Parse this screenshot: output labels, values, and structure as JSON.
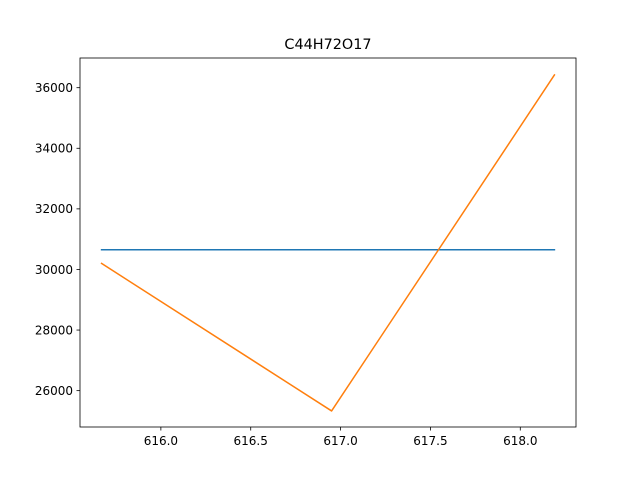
{
  "chart_data": {
    "type": "line",
    "title": "C44H72O17",
    "xlabel": "",
    "ylabel": "",
    "xlim": [
      615.55,
      618.31
    ],
    "ylim": [
      24800,
      36980
    ],
    "xticks": [
      616.0,
      616.5,
      617.0,
      617.5,
      618.0
    ],
    "xtick_labels": [
      "616.0",
      "616.5",
      "617.0",
      "617.5",
      "618.0"
    ],
    "yticks": [
      26000,
      28000,
      30000,
      32000,
      34000,
      36000
    ],
    "ytick_labels": [
      "26000",
      "28000",
      "30000",
      "32000",
      "34000",
      "36000"
    ],
    "grid": false,
    "legend": "none",
    "series": [
      {
        "color": "#1f77b4",
        "x": [
          615.67,
          618.19
        ],
        "y": [
          30650,
          30650
        ]
      },
      {
        "color": "#ff7f0e",
        "x": [
          615.67,
          616.95,
          618.19
        ],
        "y": [
          30200,
          25330,
          36420
        ]
      }
    ]
  }
}
